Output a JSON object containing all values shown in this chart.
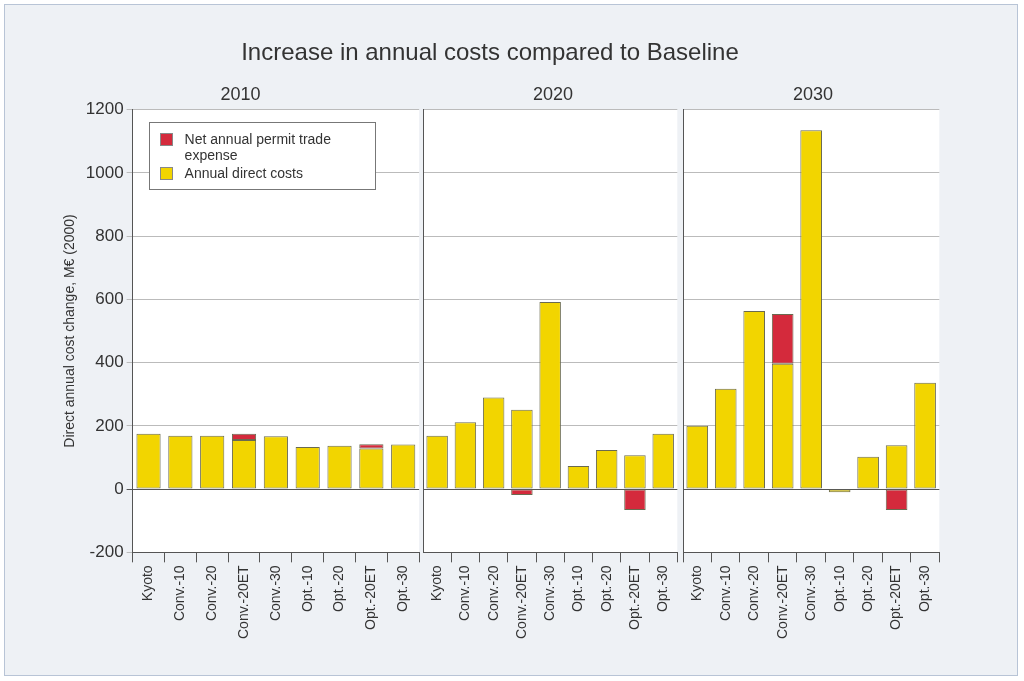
{
  "chart_data": [
    {
      "type": "bar",
      "title": "Increase in annual costs compared to Baseline",
      "subtitle": "2010",
      "ylabel": "Direct annual cost change, M€ (2000)",
      "categories": [
        "Kyoto",
        "Conv.-10",
        "Conv.-20",
        "Conv.-20ET",
        "Conv.-30",
        "Opt.-10",
        "Opt.-20",
        "Opt.-20ET",
        "Opt.-30"
      ],
      "stacked": true,
      "series": [
        {
          "name": "Annual direct costs",
          "color": "#f2d500",
          "values": [
            175,
            169,
            169,
            155,
            167,
            133,
            137,
            128,
            141
          ]
        },
        {
          "name": "Net annual permit trade expense",
          "color": "#d42a3c",
          "values": [
            null,
            null,
            null,
            20,
            null,
            null,
            null,
            14,
            null
          ]
        }
      ],
      "ylim": [
        -200,
        1200
      ],
      "yticks": [
        -200,
        0,
        200,
        400,
        600,
        800,
        1000,
        1200
      ],
      "grid": "y",
      "legend": "top left"
    },
    {
      "type": "bar",
      "subtitle": "2020",
      "categories": [
        "Kyoto",
        "Conv.-10",
        "Conv.-20",
        "Conv.-20ET",
        "Conv.-30",
        "Opt.-10",
        "Opt.-20",
        "Opt.-20ET",
        "Opt.-30"
      ],
      "stacked": true,
      "series": [
        {
          "color": "#f2d500",
          "values": [
            169,
            211,
            290,
            251,
            592,
            73,
            124,
            107,
            175
          ]
        },
        {
          "color": "#d42a3c",
          "values": [
            null,
            null,
            null,
            -19,
            null,
            null,
            null,
            -66,
            null
          ]
        }
      ],
      "ylim": [
        -200,
        1200
      ],
      "yticks": [
        -200,
        0,
        200,
        400,
        600,
        800,
        1000,
        1200
      ],
      "grid": "y",
      "tick_labels": "x"
    },
    {
      "type": "bar",
      "subtitle": "2030",
      "categories": [
        "Kyoto",
        "Conv.-10",
        "Conv.-20",
        "Conv.-20ET",
        "Conv.-30",
        "Opt.-10",
        "Opt.-20",
        "Opt.-20ET",
        "Opt.-30"
      ],
      "stacked": true,
      "series": [
        {
          "color": "#f2d500",
          "values": [
            200,
            317,
            563,
            396,
            1135,
            -10,
            102,
            139,
            336
          ]
        },
        {
          "color": "#d42a3c",
          "values": [
            null,
            null,
            null,
            158,
            null,
            null,
            null,
            -66,
            null
          ]
        }
      ],
      "ylim": [
        -200,
        1200
      ],
      "yticks": [
        -200,
        0,
        200,
        400,
        600,
        800,
        1000,
        1200
      ],
      "grid": "y",
      "tick_labels": "x"
    }
  ]
}
